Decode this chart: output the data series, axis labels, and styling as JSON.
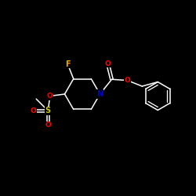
{
  "background_color": "#000000",
  "bond_color": "#ffffff",
  "atom_colors": {
    "N": "#0000cd",
    "O": "#ff0000",
    "F": "#ffa500",
    "S": "#cccc00",
    "C": "#ffffff"
  },
  "figsize": [
    2.5,
    2.5
  ],
  "dpi": 100,
  "xlim": [
    0,
    10
  ],
  "ylim": [
    0,
    10
  ],
  "lw": 1.1,
  "fontsize": 6.5
}
